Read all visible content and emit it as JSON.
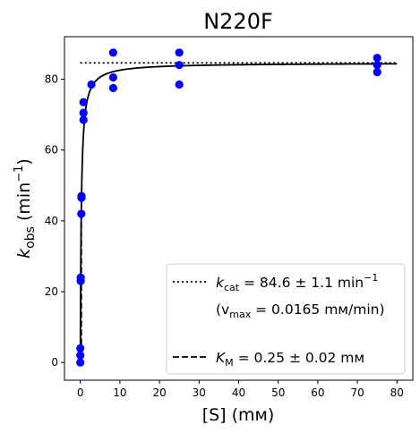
{
  "chart_data": {
    "type": "scatter",
    "title": "N220F",
    "xlabel": "[S] (mм)",
    "ylabel": "k_obs (min⁻¹)",
    "xlim": [
      -4,
      84
    ],
    "ylim": [
      -5,
      92
    ],
    "x_ticks": [
      0,
      10,
      20,
      30,
      40,
      50,
      60,
      70,
      80
    ],
    "y_ticks": [
      0,
      20,
      40,
      60,
      80
    ],
    "x_tick_labels": [
      "0",
      "10",
      "20",
      "30",
      "40",
      "50",
      "60",
      "70",
      "80"
    ],
    "y_tick_labels": [
      "0",
      "20",
      "40",
      "60",
      "80"
    ],
    "grid": false,
    "colors": {
      "points": "#0000ff",
      "fit": "#000000",
      "kcat_line": "#000000",
      "km_line": "#000000"
    },
    "points": [
      {
        "x": 0.0,
        "y": 0.0
      },
      {
        "x": 0.0,
        "y": 2.0
      },
      {
        "x": 0.0,
        "y": 4.0
      },
      {
        "x": 0.1,
        "y": 23.0
      },
      {
        "x": 0.1,
        "y": 24.0
      },
      {
        "x": 0.25,
        "y": 42.0
      },
      {
        "x": 0.3,
        "y": 46.5
      },
      {
        "x": 0.3,
        "y": 47.0
      },
      {
        "x": 0.8,
        "y": 68.5
      },
      {
        "x": 0.8,
        "y": 70.5
      },
      {
        "x": 0.8,
        "y": 73.5
      },
      {
        "x": 2.8,
        "y": 78.5
      },
      {
        "x": 8.3,
        "y": 77.5
      },
      {
        "x": 8.3,
        "y": 80.5
      },
      {
        "x": 8.3,
        "y": 87.5
      },
      {
        "x": 25.0,
        "y": 78.5
      },
      {
        "x": 25.0,
        "y": 84.0
      },
      {
        "x": 25.0,
        "y": 87.5
      },
      {
        "x": 75.0,
        "y": 82.0
      },
      {
        "x": 75.0,
        "y": 84.0
      },
      {
        "x": 75.0,
        "y": 86.0
      }
    ],
    "fit": {
      "model": "michaelis-menten",
      "kcat": 84.6,
      "km": 0.25,
      "x_range": [
        0,
        80
      ]
    },
    "kcat_line": {
      "y": 84.6,
      "x_range": [
        0,
        80
      ]
    },
    "km_line": {
      "x": 0.25,
      "y_range": [
        0,
        42.3
      ]
    },
    "legend": {
      "placement": "lower-right",
      "entries": [
        {
          "style": "dotted",
          "label_main": "k",
          "label_sub": "cat",
          "label_rest": " = 84.6 ± 1.1 min",
          "label_sup": "−1"
        },
        {
          "style": "none",
          "label_pre": "(v",
          "label_sub": "max",
          "label_rest": " = 0.0165 mм/min)"
        },
        {
          "style": "dashed",
          "label_main": "K",
          "label_sub": "M",
          "label_rest": " = 0.25 ± 0.02 mм"
        }
      ]
    }
  }
}
